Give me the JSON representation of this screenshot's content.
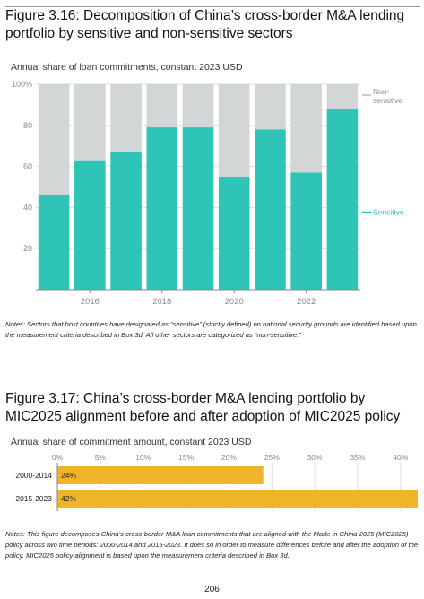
{
  "figures": {
    "fig1": {
      "title": "Figure 3.16: Decomposition of China’s cross-border M&A lending portfolio by sensitive and non-sensitive sectors",
      "subtitle": "Annual share of loan commitments, constant 2023 USD",
      "notes": "Notes: Sectors that host countries have designated as “sensitive” (strictly defined) on national security grounds are identified based upon the measurement criteria described in Box 3d. All other sectors are categorized as “non-sensitive.”"
    },
    "fig2": {
      "title": "Figure 3.17: China’s cross-border M&A lending portfolio by MIC2025 alignment before and after adoption of MIC2025 policy",
      "subtitle": "Annual share of commitment amount, constant 2023 USD",
      "notes": "Notes: This figure decomposes China’s cross-border M&A loan commitments that are aligned with the Made in China 2025 (MIC2025) policy across two time periods: 2000-2014 and 2015-2023. It does so in order to measure differences before and after the adoption of the policy. MIC2025 policy alignment is based upon the measurement criteria described in Box 3d."
    }
  },
  "page_number": "206",
  "colors": {
    "sensitive": "#2ec4b6",
    "non_sensitive": "#d3d6d6",
    "mic2025": "#f0b429",
    "grid": "#dddddd",
    "axis_text": "#8a8a8a"
  },
  "chart_data": [
    {
      "type": "bar",
      "stacked": true,
      "x": [
        2015,
        2016,
        2017,
        2018,
        2019,
        2020,
        2021,
        2022,
        2023
      ],
      "series": [
        {
          "name": "Sensitive",
          "values": [
            46,
            63,
            67,
            79,
            79,
            55,
            78,
            57,
            88
          ]
        },
        {
          "name": "Non-sensitive",
          "values": [
            54,
            37,
            33,
            21,
            21,
            45,
            22,
            43,
            12
          ]
        }
      ],
      "x_tick_labels": [
        "2016",
        "2018",
        "2020",
        "2022"
      ],
      "x_tick_values": [
        2016,
        2018,
        2020,
        2022
      ],
      "y_tick_labels": [
        "20",
        "40",
        "60",
        "80",
        "100%"
      ],
      "y_tick_values": [
        20,
        40,
        60,
        80,
        100
      ],
      "ylim": [
        0,
        100
      ],
      "legend": [
        "Non-sensitive",
        "Sensitive"
      ],
      "legend_placement": "right",
      "grid": true
    },
    {
      "type": "bar",
      "orientation": "horizontal",
      "categories": [
        "2000-2014",
        "2015-2023"
      ],
      "values": [
        24,
        42
      ],
      "data_labels": [
        "24%",
        "42%"
      ],
      "x_tick_labels": [
        "0%",
        "5%",
        "10%",
        "15%",
        "20%",
        "25%",
        "30%",
        "35%",
        "40%"
      ],
      "x_tick_values": [
        0,
        5,
        10,
        15,
        20,
        25,
        30,
        35,
        40
      ],
      "xlim": [
        0,
        42
      ],
      "grid": true
    }
  ]
}
